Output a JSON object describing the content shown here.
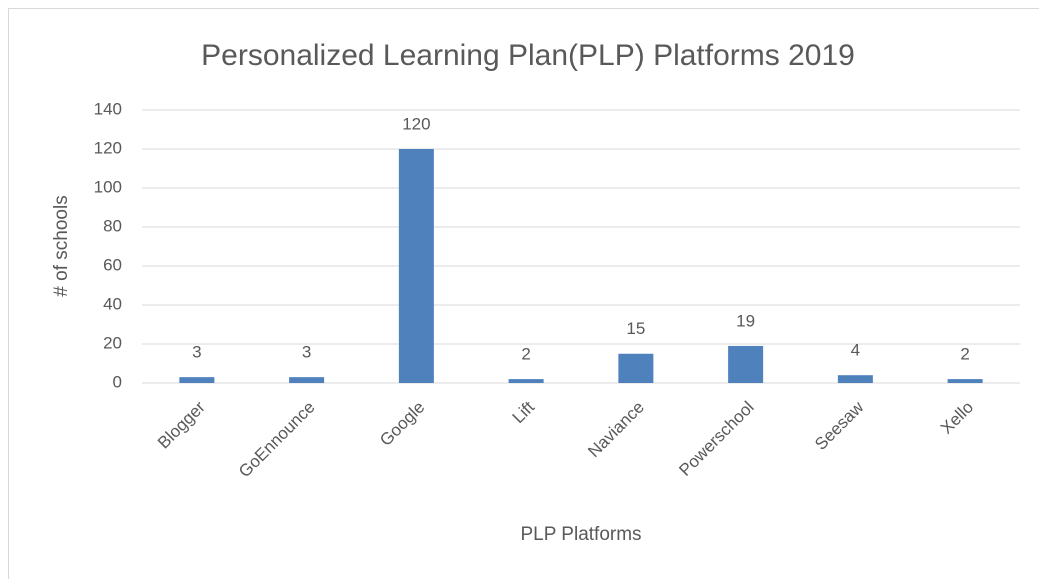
{
  "chart_data": {
    "type": "bar",
    "title": "Personalized Learning Plan(PLP) Platforms 2019",
    "x_label": "PLP Platforms",
    "y_label": "# of schools",
    "categories": [
      "Blogger",
      "GoEnnounce",
      "Google",
      "Lift",
      "Naviance",
      "Powerschool",
      "Seesaw",
      "Xello"
    ],
    "values": [
      3,
      3,
      120,
      2,
      15,
      19,
      4,
      2
    ],
    "color": "#4f81bd",
    "ylim": [
      0,
      140
    ],
    "yticks": [
      0,
      20,
      40,
      60,
      80,
      100,
      120,
      140
    ],
    "grid": true
  }
}
